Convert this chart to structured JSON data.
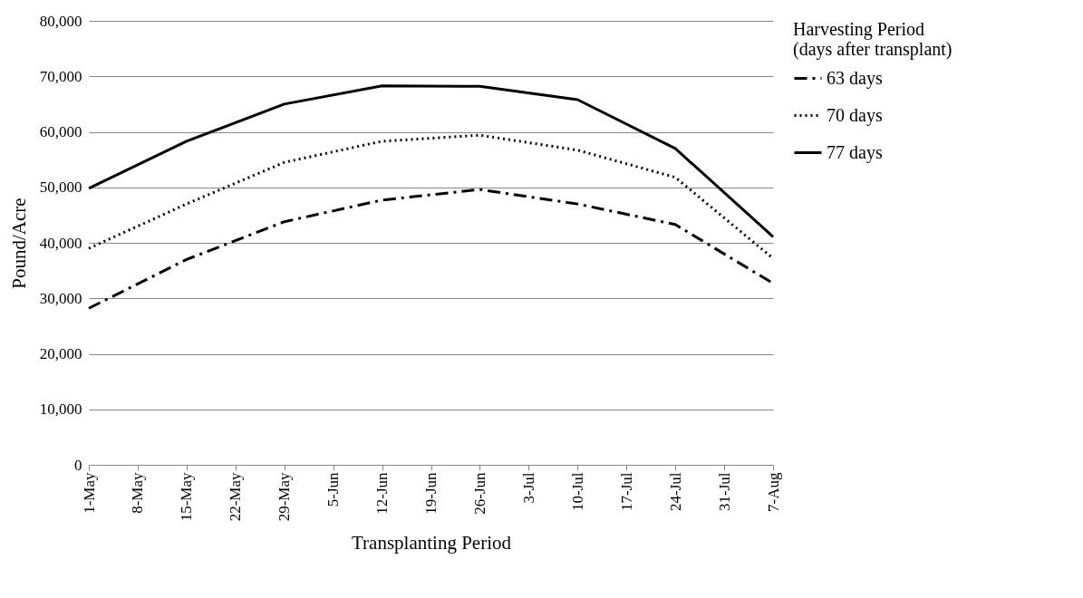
{
  "chart_data": {
    "type": "line",
    "xlabel": "Transplanting Period",
    "ylabel": "Pound/Acre",
    "legend_title": "Harvesting Period\n(days after transplant)",
    "legend": "right",
    "grid": "y",
    "xlim": [
      "--05-01",
      "--08-07"
    ],
    "xticks": [
      {
        "value": "--05-01",
        "label": "1-May"
      },
      {
        "value": "--05-08",
        "label": "8-May"
      },
      {
        "value": "--05-15",
        "label": "15-May"
      },
      {
        "value": "--05-22",
        "label": "22-May"
      },
      {
        "value": "--05-29",
        "label": "29-May"
      },
      {
        "value": "--06-05",
        "label": "5-Jun"
      },
      {
        "value": "--06-12",
        "label": "12-Jun"
      },
      {
        "value": "--06-19",
        "label": "19-Jun"
      },
      {
        "value": "--06-26",
        "label": "26-Jun"
      },
      {
        "value": "--07-03",
        "label": "3-Jul"
      },
      {
        "value": "--07-10",
        "label": "10-Jul"
      },
      {
        "value": "--07-17",
        "label": "17-Jul"
      },
      {
        "value": "--07-24",
        "label": "24-Jul"
      },
      {
        "value": "--07-31",
        "label": "31-Jul"
      },
      {
        "value": "--08-07",
        "label": "7-Aug"
      }
    ],
    "ylim": [
      0,
      80000
    ],
    "yticks": [
      {
        "value": 0,
        "label": "0"
      },
      {
        "value": 10000,
        "label": "10,000"
      },
      {
        "value": 20000,
        "label": "20,000"
      },
      {
        "value": 30000,
        "label": "30,000"
      },
      {
        "value": 40000,
        "label": "40,000"
      },
      {
        "value": 50000,
        "label": "50,000"
      },
      {
        "value": 60000,
        "label": "60,000"
      },
      {
        "value": 70000,
        "label": "70,000"
      },
      {
        "value": 80000,
        "label": "80,000"
      }
    ],
    "x": [
      "--05-01",
      "--05-15",
      "--05-29",
      "--06-12",
      "--06-26",
      "--07-10",
      "--07-24",
      "--08-07"
    ],
    "series": [
      {
        "name": "63 days",
        "color": "#000000",
        "line_style": "dashed",
        "values": [
          28200,
          37000,
          43800,
          47700,
          49600,
          47000,
          43300,
          32700
        ]
      },
      {
        "name": "70 days",
        "color": "#000000",
        "line_style": "dotted",
        "values": [
          39000,
          47000,
          54500,
          58300,
          59400,
          56700,
          51800,
          37200
        ]
      },
      {
        "name": "77 days",
        "color": "#000000",
        "line_style": "solid",
        "values": [
          49800,
          58300,
          65000,
          68300,
          68200,
          65800,
          57000,
          41100
        ]
      }
    ]
  }
}
